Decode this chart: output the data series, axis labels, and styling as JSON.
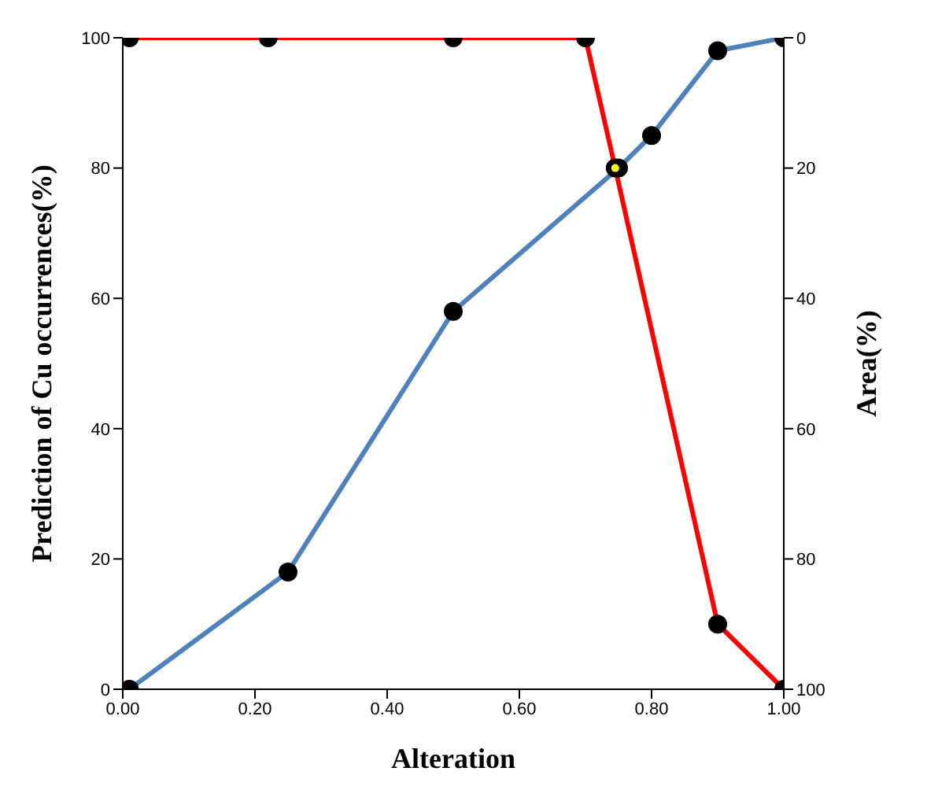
{
  "chart_data": {
    "type": "line",
    "xlabel": "Alteration",
    "ylabel": "Prediction of Cu occurrences(%)",
    "y2label": "Area(%)",
    "xlim": [
      0,
      1
    ],
    "xticks": [
      {
        "value": 0,
        "label": "0.00"
      },
      {
        "value": 0.2,
        "label": "0.20"
      },
      {
        "value": 0.4,
        "label": "0.40"
      },
      {
        "value": 0.6,
        "label": "0.60"
      },
      {
        "value": 0.8,
        "label": "0.80"
      },
      {
        "value": 1,
        "label": "1.00"
      }
    ],
    "ylim": [
      0,
      100
    ],
    "yticks": [
      0,
      20,
      40,
      60,
      80,
      100
    ],
    "y2lim": [
      100,
      0
    ],
    "y2ticks": [
      0,
      20,
      40,
      60,
      80,
      100
    ],
    "marker": "circle",
    "grid": false,
    "legend": false,
    "series": [
      {
        "color": "#4f81bd",
        "x": [
          0.01,
          0.25,
          0.5,
          0.75,
          0.8,
          0.9,
          1.0
        ],
        "values": [
          0,
          18,
          58,
          80,
          85,
          98,
          100
        ]
      },
      {
        "color": "#ff0000",
        "axis": "y2",
        "x": [
          0.01,
          0.22,
          0.5,
          0.7,
          0.745,
          0.9,
          1.0
        ],
        "values": [
          0,
          0,
          0,
          0,
          20,
          90,
          100
        ]
      },
      {
        "type": "scatter",
        "color": "#ffff00",
        "x": [
          0.745
        ],
        "values": [
          80
        ]
      }
    ]
  }
}
